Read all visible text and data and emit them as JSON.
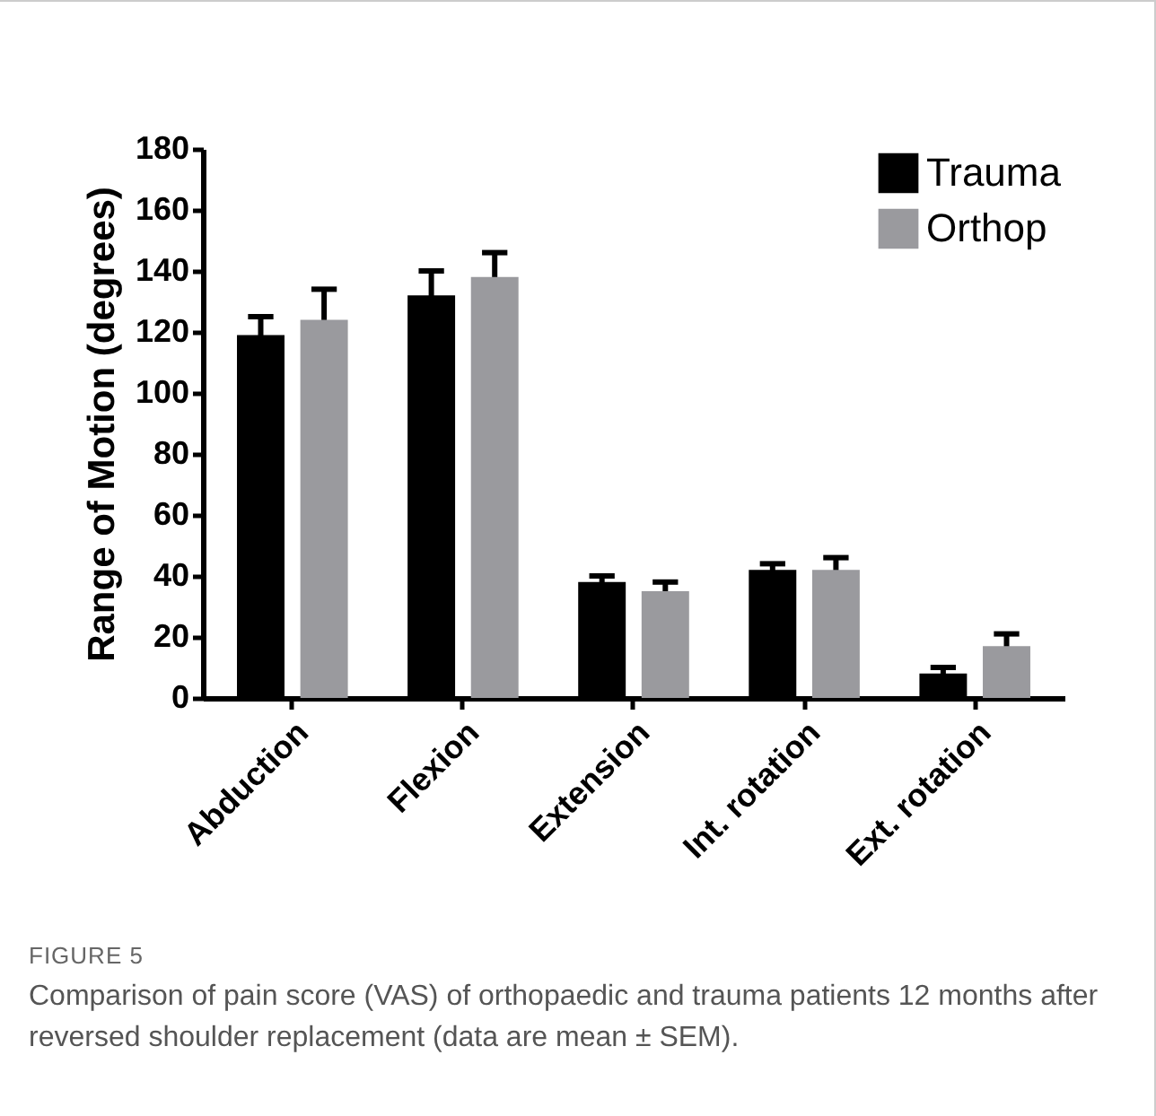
{
  "chart_data": {
    "type": "bar",
    "ylabel": "Range of Motion (degrees)",
    "categories": [
      "Abduction",
      "Flexion",
      "Extension",
      "Int. rotation",
      "Ext. rotation"
    ],
    "series": [
      {
        "name": "Trauma",
        "color": "#000000",
        "values": [
          119,
          132,
          38,
          42,
          8
        ],
        "errors": [
          6,
          8,
          2,
          2,
          2
        ]
      },
      {
        "name": "Orthop",
        "color": "#9a9a9e",
        "values": [
          124,
          138,
          35,
          42,
          17
        ],
        "errors": [
          10,
          8,
          3,
          4,
          4
        ]
      }
    ],
    "ylim": [
      0,
      180
    ],
    "yticks": [
      0,
      20,
      40,
      60,
      80,
      100,
      120,
      140,
      160,
      180
    ],
    "grid": false,
    "legend": "top right",
    "annotations": [
      "FIGURE 5",
      "Comparison of pain score (VAS) of orthopaedic and trauma patients 12 months after reversed shoulder replacement (data are mean ± SEM)."
    ]
  }
}
